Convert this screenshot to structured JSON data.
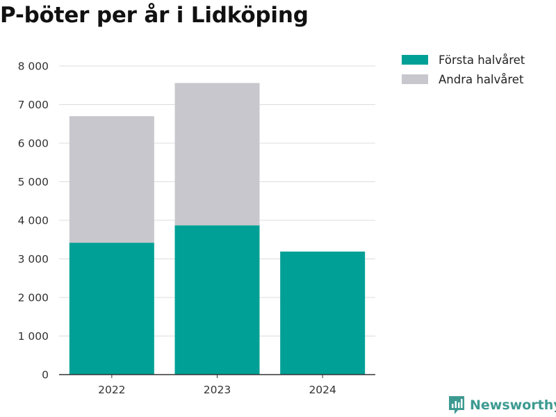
{
  "title": "P-böter per år i Lidköping",
  "legend": [
    {
      "label": "Första halvåret",
      "color": "#00a096"
    },
    {
      "label": "Andra halvåret",
      "color": "#c8c7cd"
    }
  ],
  "brand": {
    "name": "Newsworthy",
    "icon": "newsworthy-logo-icon"
  },
  "chart_data": {
    "type": "bar",
    "stacked": true,
    "categories": [
      "2022",
      "2023",
      "2024"
    ],
    "series": [
      {
        "name": "Första halvåret",
        "values": [
          3420,
          3870,
          3190
        ],
        "color": "#00a096"
      },
      {
        "name": "Andra halvåret",
        "values": [
          3280,
          3690,
          null
        ],
        "color": "#c8c7cd"
      }
    ],
    "ylim": [
      0,
      8000
    ],
    "yticks": [
      0,
      1000,
      2000,
      3000,
      4000,
      5000,
      6000,
      7000,
      8000
    ],
    "ytick_labels": [
      "0",
      "1 000",
      "2 000",
      "3 000",
      "4 000",
      "5 000",
      "6 000",
      "7 000",
      "8 000"
    ],
    "grid": true,
    "legend_position": "top-right"
  }
}
